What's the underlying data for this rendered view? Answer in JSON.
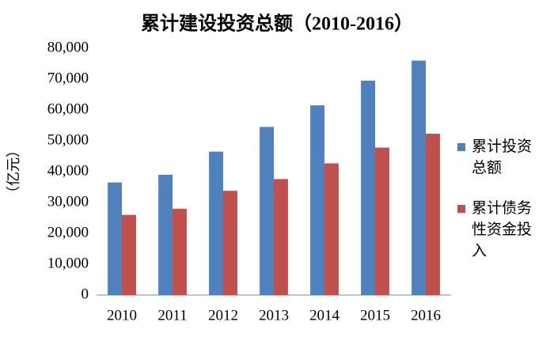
{
  "chart_data": {
    "type": "bar",
    "title": "累计建设投资总额（2010-2016）",
    "y_label": "（亿元）",
    "categories": [
      "2010",
      "2011",
      "2012",
      "2013",
      "2014",
      "2015",
      "2016"
    ],
    "series": [
      {
        "name": "累计投资总额",
        "color": "#4f81bd",
        "values": [
          36500,
          39000,
          46500,
          54500,
          61500,
          69500,
          76000
        ]
      },
      {
        "name": "累计债务性资金投入",
        "color": "#c0504d",
        "values": [
          26000,
          28000,
          33800,
          37600,
          42700,
          47800,
          52300
        ]
      }
    ],
    "ylim": [
      0,
      80000
    ],
    "yticks": [
      0,
      {
        "value": 10000,
        "label": "10,000"
      },
      {
        "value": 20000,
        "label": "20,000"
      },
      {
        "value": 30000,
        "label": "30,000"
      },
      {
        "value": 40000,
        "label": "40,000"
      },
      {
        "value": 50000,
        "label": "50,000"
      },
      {
        "value": 60000,
        "label": "60,000"
      },
      {
        "value": 70000,
        "label": "70,000"
      },
      {
        "value": 80000,
        "label": "80,000"
      }
    ],
    "grid": false,
    "legend": "right"
  }
}
